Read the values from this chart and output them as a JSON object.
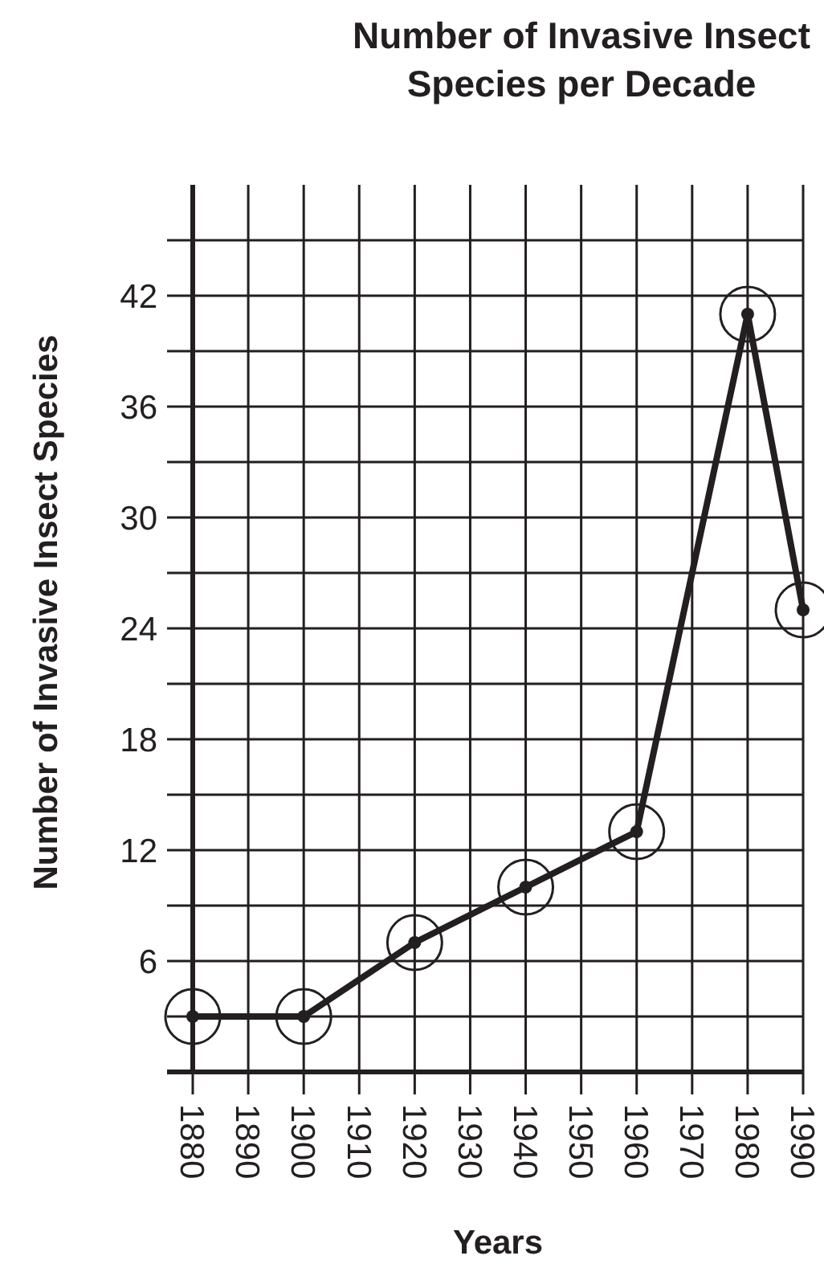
{
  "chart_data": {
    "type": "line",
    "title": "Number of Invasive Insect\nSpecies per Decade",
    "xlabel": "Years",
    "ylabel": "Number of Invasive Insect Species",
    "x": [
      1880,
      1900,
      1920,
      1940,
      1960,
      1980,
      1990
    ],
    "series": [
      {
        "color": "#231f20",
        "values": [
          3,
          3,
          7,
          10,
          13,
          41,
          25
        ]
      }
    ],
    "xlim": [
      1880,
      1990
    ],
    "xticks": [
      1880,
      1890,
      1900,
      1910,
      1920,
      1930,
      1940,
      1950,
      1960,
      1970,
      1980,
      1990
    ],
    "ylim": [
      0,
      48
    ],
    "yticks": [
      {
        "value": 0,
        "label": null
      },
      {
        "value": 3,
        "label": null
      },
      6,
      {
        "value": 9,
        "label": null
      },
      12,
      {
        "value": 15,
        "label": null
      },
      18,
      {
        "value": 21,
        "label": null
      },
      24,
      {
        "value": 27,
        "label": null
      },
      30,
      {
        "value": 33,
        "label": null
      },
      36,
      {
        "value": 39,
        "label": null
      },
      42,
      {
        "value": 45,
        "label": null
      }
    ],
    "grid": true,
    "marker": "circle",
    "line_style": "solid"
  }
}
